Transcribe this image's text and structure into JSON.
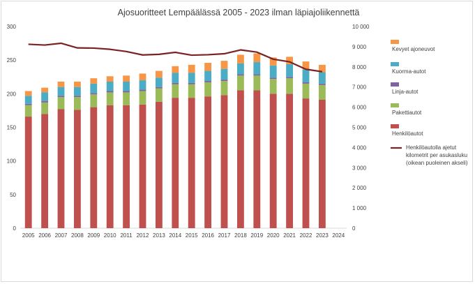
{
  "chart_data": {
    "type": "bar",
    "title": "Ajosuoritteet Lempäälässä 2005 - 2023 ilman läpiajoliikennettä",
    "categories": [
      "2005",
      "2006",
      "2007",
      "2008",
      "2009",
      "2010",
      "2011",
      "2012",
      "2013",
      "2014",
      "2015",
      "2016",
      "2017",
      "2018",
      "2019",
      "2020",
      "2021",
      "2022",
      "2023",
      "2024"
    ],
    "stacked": true,
    "series": [
      {
        "name": "Henkilöautot",
        "color": "#c0504d",
        "values": [
          166,
          170,
          177,
          176,
          180,
          183,
          183,
          184,
          188,
          194,
          194,
          196,
          198,
          205,
          205,
          200,
          200,
          193,
          191,
          null
        ]
      },
      {
        "name": "Pakettiautot",
        "color": "#9bbb59",
        "values": [
          17,
          17,
          18,
          19,
          19,
          19,
          19,
          20,
          20,
          20,
          20,
          21,
          21,
          22,
          22,
          22,
          23,
          22,
          22,
          null
        ]
      },
      {
        "name": "Linja-autot",
        "color": "#8064a2",
        "values": [
          2,
          2,
          2,
          2,
          2,
          2,
          2,
          2,
          2,
          2,
          2,
          2,
          2,
          2,
          2,
          2,
          2,
          2,
          2,
          null
        ]
      },
      {
        "name": "Kuorma-autot",
        "color": "#4bacc6",
        "values": [
          12,
          13,
          13,
          13,
          14,
          14,
          14,
          14,
          14,
          15,
          15,
          15,
          16,
          16,
          18,
          18,
          19,
          19,
          17,
          null
        ]
      },
      {
        "name": "Kevyet ajoneuvot",
        "color": "#f79646",
        "values": [
          7,
          7,
          8,
          8,
          8,
          8,
          9,
          10,
          10,
          10,
          12,
          12,
          12,
          13,
          13,
          12,
          11,
          12,
          11,
          null
        ]
      }
    ],
    "line_series": {
      "name": "Henkilöautolla ajetut kilometrit per asukasluku (oikean puoleinen akseli)",
      "color": "#7b2222",
      "values": [
        9120,
        9080,
        9170,
        8940,
        8930,
        8870,
        8760,
        8590,
        8620,
        8720,
        8580,
        8600,
        8650,
        8840,
        8730,
        8380,
        8250,
        7880,
        7760,
        null
      ]
    },
    "y_left": {
      "min": 0,
      "max": 300,
      "ticks": [
        0,
        50,
        100,
        150,
        200,
        250,
        300
      ]
    },
    "y_right": {
      "min": 0,
      "max": 10000,
      "ticks": [
        0,
        1000,
        2000,
        3000,
        4000,
        5000,
        6000,
        7000,
        8000,
        9000,
        10000
      ],
      "tick_labels": [
        "0",
        "1 000",
        "2 000",
        "3 000",
        "4 000",
        "5 000",
        "6 000",
        "7 000",
        "8 000",
        "9 000",
        "10 000"
      ]
    },
    "grid": false,
    "legend_position": "right",
    "legend_order": [
      "Kevyet ajoneuvot",
      "Kuorma-autot",
      "Linja-autot",
      "Pakettiautot",
      "Henkilöautot",
      "line"
    ],
    "legend_line_text": [
      "Henkilöautolla ajetut",
      "kilometrit per asukasluku",
      "(oikean puoleinen akseli)"
    ]
  }
}
